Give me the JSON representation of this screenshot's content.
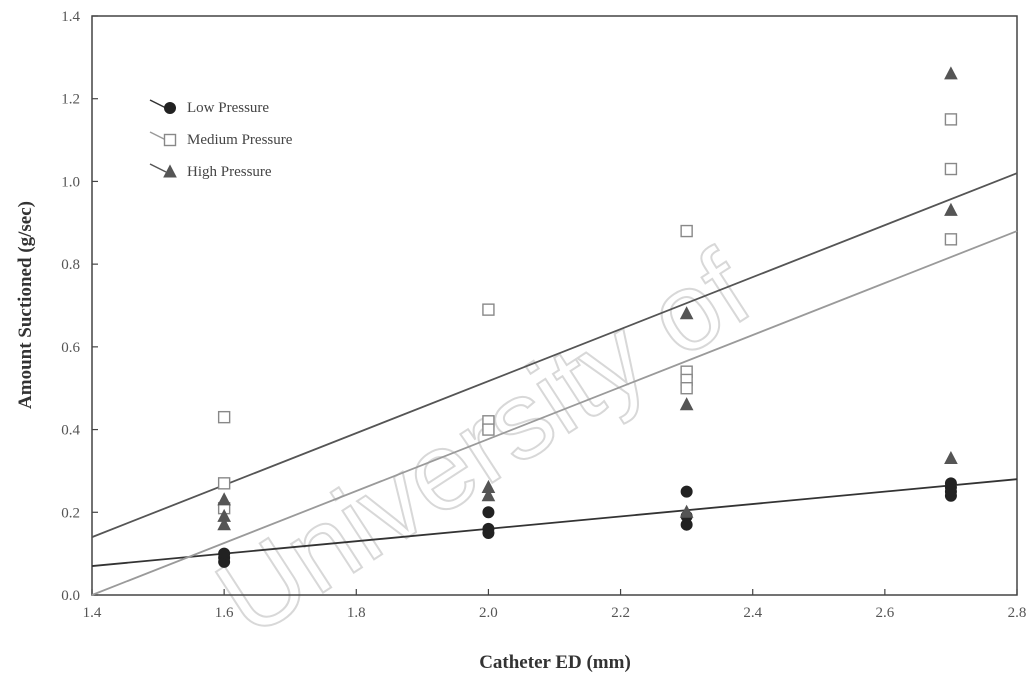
{
  "chart_data": {
    "type": "scatter",
    "xlabel": "Catheter ED (mm)",
    "ylabel": "Amount Suctioned (g/sec)",
    "xlim": [
      1.4,
      2.8
    ],
    "ylim": [
      0.0,
      1.4
    ],
    "xticks": [
      "1.4",
      "1.6",
      "1.8",
      "2.0",
      "2.2",
      "2.4",
      "2.6",
      "2.8"
    ],
    "yticks": [
      "0.0",
      "0.2",
      "0.4",
      "0.6",
      "0.8",
      "1.0",
      "1.2",
      "1.4"
    ],
    "grid": false,
    "legend_position": "top-left",
    "series": [
      {
        "name": "Low Pressure",
        "marker": "filled-circle",
        "color": "#222222",
        "points": [
          [
            1.6,
            0.08
          ],
          [
            1.6,
            0.09
          ],
          [
            1.6,
            0.1
          ],
          [
            2.0,
            0.15
          ],
          [
            2.0,
            0.2
          ],
          [
            2.0,
            0.16
          ],
          [
            2.3,
            0.17
          ],
          [
            2.3,
            0.19
          ],
          [
            2.3,
            0.25
          ],
          [
            2.7,
            0.24
          ],
          [
            2.7,
            0.25
          ],
          [
            2.7,
            0.26
          ],
          [
            2.7,
            0.27
          ]
        ],
        "fit_line": [
          [
            1.4,
            0.07
          ],
          [
            2.8,
            0.28
          ]
        ]
      },
      {
        "name": "Medium Pressure",
        "marker": "open-square",
        "color": "#888888",
        "points": [
          [
            1.6,
            0.43
          ],
          [
            1.6,
            0.27
          ],
          [
            1.6,
            0.21
          ],
          [
            2.0,
            0.69
          ],
          [
            2.0,
            0.42
          ],
          [
            2.0,
            0.4
          ],
          [
            2.3,
            0.88
          ],
          [
            2.3,
            0.54
          ],
          [
            2.3,
            0.52
          ],
          [
            2.3,
            0.5
          ],
          [
            2.7,
            1.15
          ],
          [
            2.7,
            1.03
          ],
          [
            2.7,
            0.86
          ]
        ],
        "fit_line": [
          [
            1.4,
            0.0
          ],
          [
            2.8,
            0.88
          ]
        ]
      },
      {
        "name": "High Pressure",
        "marker": "filled-triangle",
        "color": "#555555",
        "points": [
          [
            1.6,
            0.23
          ],
          [
            1.6,
            0.19
          ],
          [
            1.6,
            0.17
          ],
          [
            2.0,
            0.26
          ],
          [
            2.0,
            0.24
          ],
          [
            2.3,
            0.68
          ],
          [
            2.3,
            0.46
          ],
          [
            2.3,
            0.2
          ],
          [
            2.7,
            1.26
          ],
          [
            2.7,
            0.93
          ],
          [
            2.7,
            0.33
          ]
        ],
        "fit_line": [
          [
            1.4,
            0.14
          ],
          [
            2.8,
            1.02
          ]
        ]
      }
    ]
  },
  "watermark": {
    "text": "University of",
    "color": "#d8d8d8"
  }
}
